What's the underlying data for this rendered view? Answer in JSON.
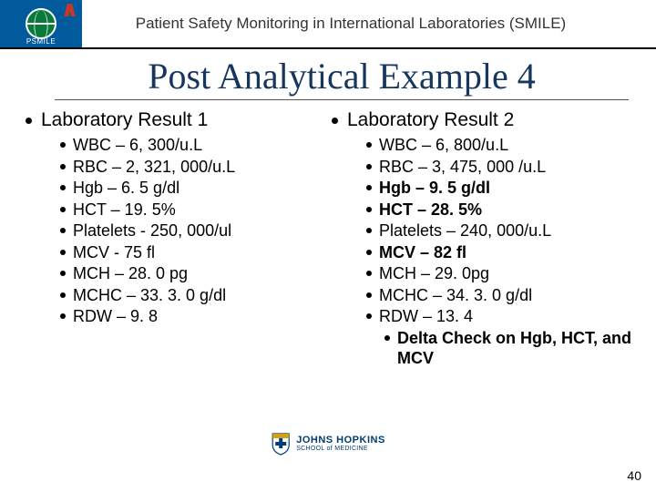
{
  "header": {
    "logo_label": "PSMILE",
    "title": "Patient Safety Monitoring in International Laboratories (SMILE)"
  },
  "main_title": "Post Analytical Example 4",
  "columns": [
    {
      "title": "Laboratory Result 1",
      "items": [
        {
          "text": "WBC – 6, 300/u.L",
          "bold": false
        },
        {
          "text": "RBC – 2, 321, 000/u.L",
          "bold": false
        },
        {
          "text": "Hgb – 6. 5 g/dl",
          "bold": false
        },
        {
          "text": "HCT – 19. 5%",
          "bold": false
        },
        {
          "text": "Platelets - 250, 000/ul",
          "bold": false
        },
        {
          "text": "MCV - 75 fl",
          "bold": false
        },
        {
          "text": "MCH – 28. 0 pg",
          "bold": false
        },
        {
          "text": "MCHC – 33. 3. 0 g/dl",
          "bold": false
        },
        {
          "text": "RDW – 9. 8",
          "bold": false
        }
      ]
    },
    {
      "title": "Laboratory Result 2",
      "items": [
        {
          "text": "WBC – 6, 800/u.L",
          "bold": false
        },
        {
          "text": "RBC – 3, 475, 000 /u.L",
          "bold": false
        },
        {
          "text": "Hgb – 9. 5 g/dl",
          "bold": true
        },
        {
          "text": "HCT – 28. 5%",
          "bold": true
        },
        {
          "text": "Platelets – 240, 000/u.L",
          "bold": false
        },
        {
          "text": "MCV – 82 fl",
          "bold": true
        },
        {
          "text": "MCH –  29. 0pg",
          "bold": false
        },
        {
          "text": "MCHC – 34. 3. 0 g/dl",
          "bold": false
        },
        {
          "text": "RDW – 13. 4",
          "bold": false
        }
      ],
      "sub_items": [
        {
          "text": "Delta Check on Hgb, HCT, and MCV",
          "bold": true
        }
      ]
    }
  ],
  "footer": {
    "logo_line1": "JOHNS HOPKINS",
    "logo_line2": "SCHOOL of MEDICINE"
  },
  "page_number": "40",
  "colors": {
    "header_logo_bg": "#005a9c",
    "title_color": "#17365d",
    "jh_color": "#003d73"
  }
}
